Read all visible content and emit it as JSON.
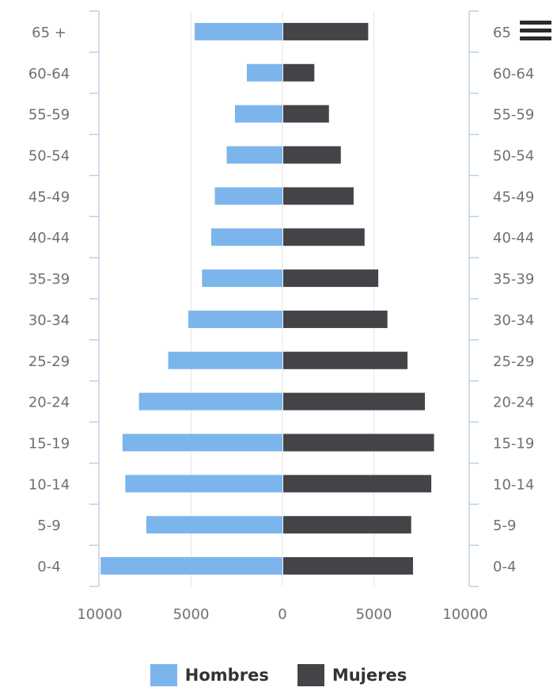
{
  "chart_data": {
    "type": "bar",
    "orientation": "horizontal",
    "categories": [
      "0-4",
      "5-9",
      "10-14",
      "15-19",
      "20-24",
      "25-29",
      "30-34",
      "35-39",
      "40-44",
      "45-49",
      "50-54",
      "55-59",
      "60-64",
      "65 +"
    ],
    "right_axis_labels": [
      "0-4",
      "5-9",
      "10-14",
      "15-19",
      "20-24",
      "25-29",
      "30-34",
      "35-39",
      "40-44",
      "45-49",
      "50-54",
      "55-59",
      "60-64",
      "65"
    ],
    "series": [
      {
        "name": "Hombres",
        "color": "#7cb5ec",
        "values": [
          9950,
          7450,
          8600,
          8750,
          7850,
          6250,
          5150,
          4400,
          3900,
          3700,
          3050,
          2600,
          1950,
          4800
        ]
      },
      {
        "name": "Mujeres",
        "color": "#434348",
        "values": [
          7100,
          7000,
          8100,
          8250,
          7750,
          6800,
          5700,
          5200,
          4450,
          3850,
          3150,
          2500,
          1700,
          4650
        ]
      }
    ],
    "x_ticks": [
      "10000",
      "5000",
      "0",
      "5000",
      "10000"
    ],
    "xlim": [
      -10000,
      10000
    ],
    "grid": true,
    "legend_position": "bottom-center"
  },
  "legend": {
    "men": "Hombres",
    "women": "Mujeres"
  },
  "icons": {
    "menu": "hamburger-menu-icon"
  }
}
